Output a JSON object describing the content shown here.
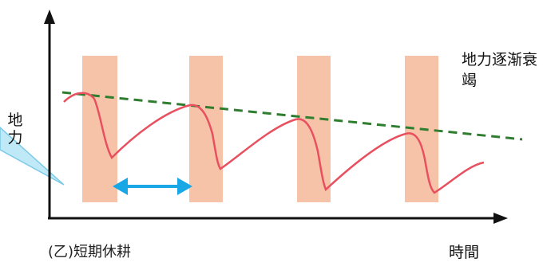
{
  "labels": {
    "y_axis": "地力",
    "x_axis": "時間",
    "note": "地力逐渐衰竭",
    "caption": "(乙)短期休耕"
  },
  "colors": {
    "fallow_band": "#f7c3a8",
    "soil_curve": "#e8505f",
    "trend_line": "#2f7d2f",
    "period_arrow": "#19a7e6",
    "callout": "#bfe9f7",
    "axis": "#111111"
  },
  "fallow_periods_count": 4
}
